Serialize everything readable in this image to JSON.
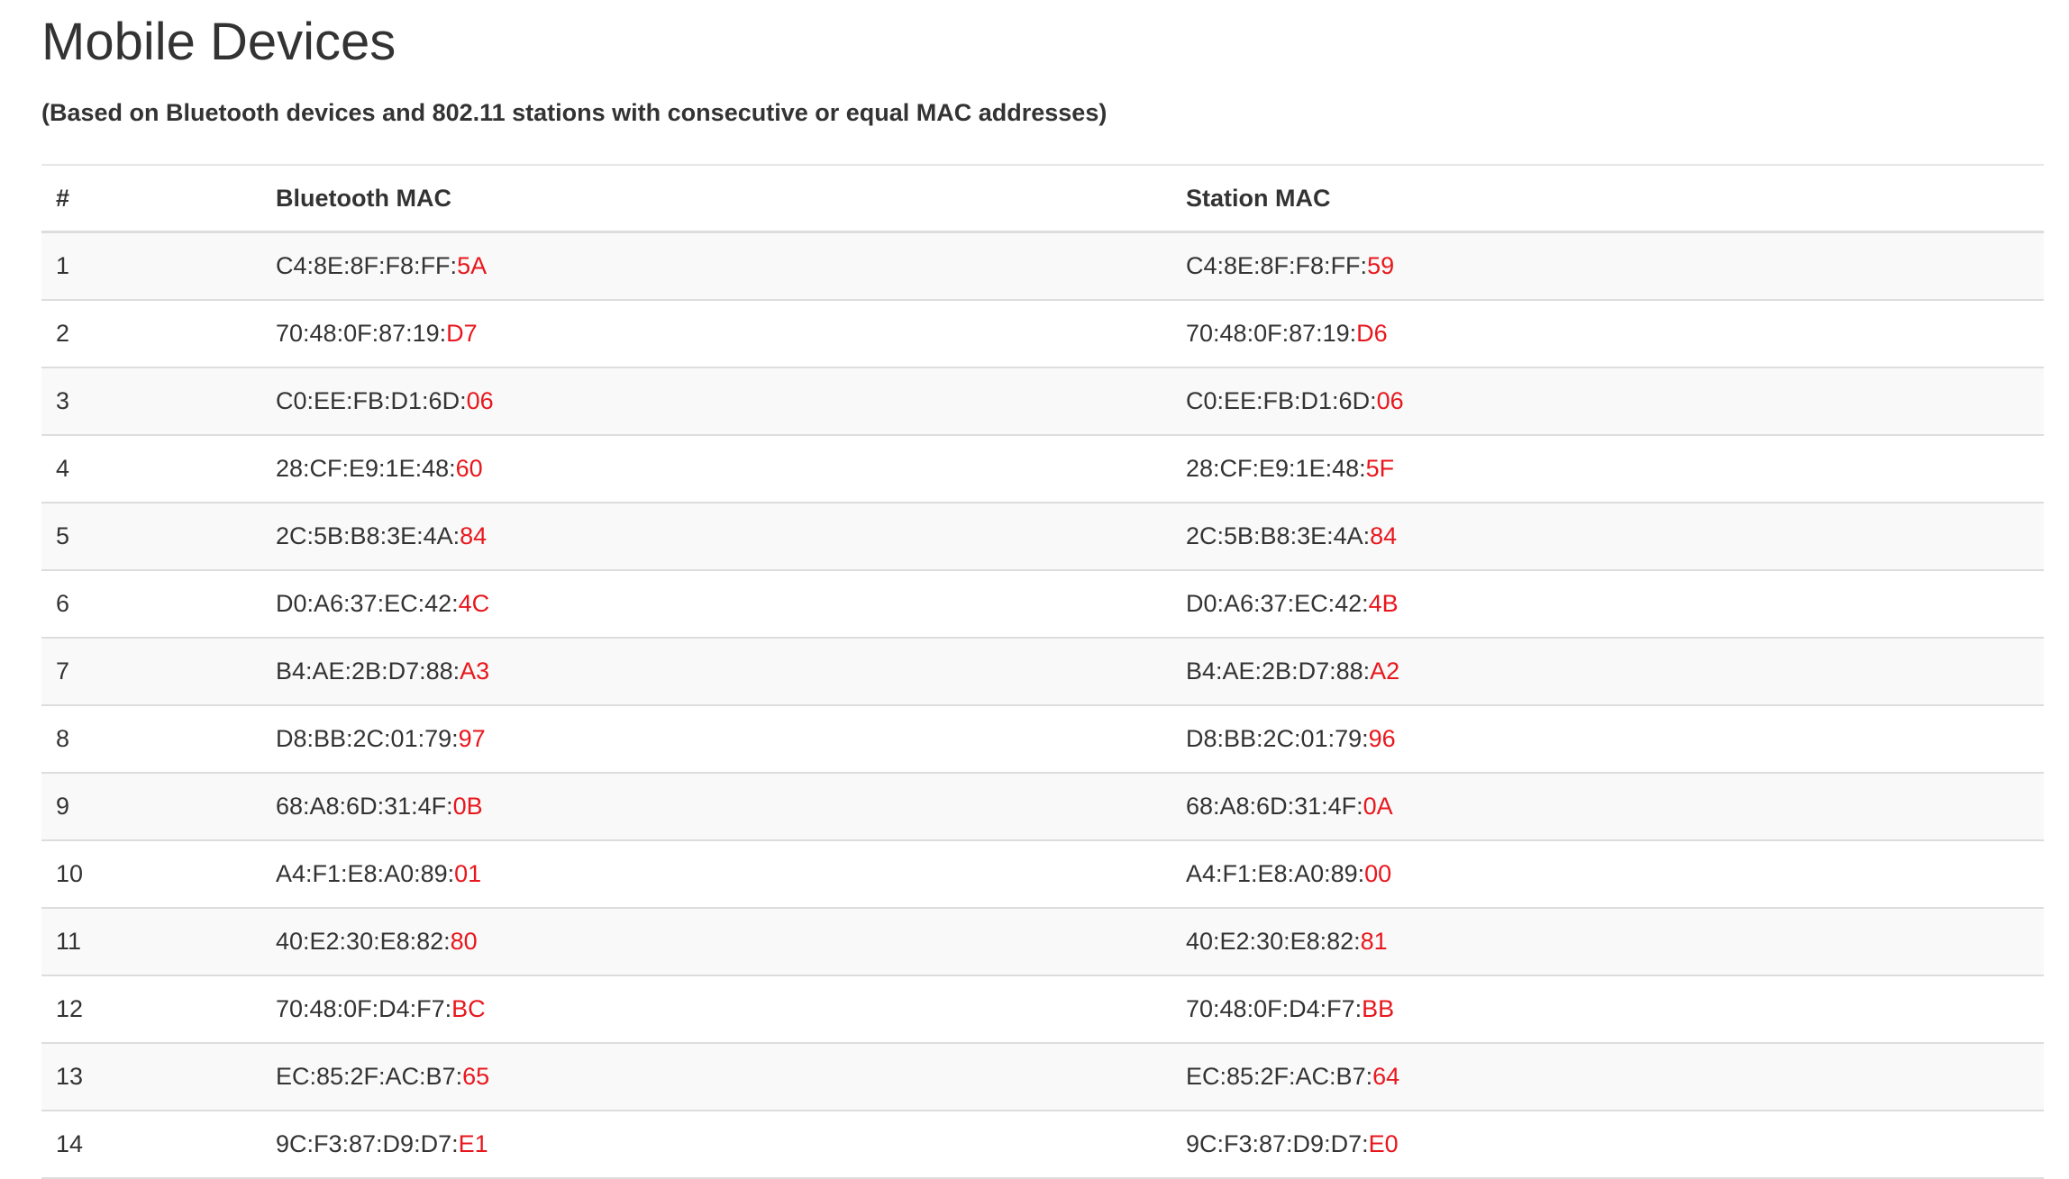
{
  "page": {
    "title": "Mobile Devices",
    "subtitle": "(Based on Bluetooth devices and 802.11 stations with consecutive or equal MAC addresses)"
  },
  "colors": {
    "highlight": "#e8171d",
    "text": "#333333",
    "stripe": "#f9f9f9"
  },
  "table": {
    "headers": [
      "#",
      "Bluetooth MAC",
      "Station MAC"
    ],
    "rows": [
      {
        "num": "1",
        "bt_prefix": "C4:8E:8F:F8:FF:",
        "bt_suffix": "5A",
        "st_prefix": "C4:8E:8F:F8:FF:",
        "st_suffix": "59"
      },
      {
        "num": "2",
        "bt_prefix": "70:48:0F:87:19:",
        "bt_suffix": "D7",
        "st_prefix": "70:48:0F:87:19:",
        "st_suffix": "D6"
      },
      {
        "num": "3",
        "bt_prefix": "C0:EE:FB:D1:6D:",
        "bt_suffix": "06",
        "st_prefix": "C0:EE:FB:D1:6D:",
        "st_suffix": "06"
      },
      {
        "num": "4",
        "bt_prefix": "28:CF:E9:1E:48:",
        "bt_suffix": "60",
        "st_prefix": "28:CF:E9:1E:48:",
        "st_suffix": "5F"
      },
      {
        "num": "5",
        "bt_prefix": "2C:5B:B8:3E:4A:",
        "bt_suffix": "84",
        "st_prefix": "2C:5B:B8:3E:4A:",
        "st_suffix": "84"
      },
      {
        "num": "6",
        "bt_prefix": "D0:A6:37:EC:42:",
        "bt_suffix": "4C",
        "st_prefix": "D0:A6:37:EC:42:",
        "st_suffix": "4B"
      },
      {
        "num": "7",
        "bt_prefix": "B4:AE:2B:D7:88:",
        "bt_suffix": "A3",
        "st_prefix": "B4:AE:2B:D7:88:",
        "st_suffix": "A2"
      },
      {
        "num": "8",
        "bt_prefix": "D8:BB:2C:01:79:",
        "bt_suffix": "97",
        "st_prefix": "D8:BB:2C:01:79:",
        "st_suffix": "96"
      },
      {
        "num": "9",
        "bt_prefix": "68:A8:6D:31:4F:",
        "bt_suffix": "0B",
        "st_prefix": "68:A8:6D:31:4F:",
        "st_suffix": "0A"
      },
      {
        "num": "10",
        "bt_prefix": "A4:F1:E8:A0:89:",
        "bt_suffix": "01",
        "st_prefix": "A4:F1:E8:A0:89:",
        "st_suffix": "00"
      },
      {
        "num": "11",
        "bt_prefix": "40:E2:30:E8:82:",
        "bt_suffix": "80",
        "st_prefix": "40:E2:30:E8:82:",
        "st_suffix": "81"
      },
      {
        "num": "12",
        "bt_prefix": "70:48:0F:D4:F7:",
        "bt_suffix": "BC",
        "st_prefix": "70:48:0F:D4:F7:",
        "st_suffix": "BB"
      },
      {
        "num": "13",
        "bt_prefix": "EC:85:2F:AC:B7:",
        "bt_suffix": "65",
        "st_prefix": "EC:85:2F:AC:B7:",
        "st_suffix": "64"
      },
      {
        "num": "14",
        "bt_prefix": "9C:F3:87:D9:D7:",
        "bt_suffix": "E1",
        "st_prefix": "9C:F3:87:D9:D7:",
        "st_suffix": "E0"
      }
    ]
  }
}
